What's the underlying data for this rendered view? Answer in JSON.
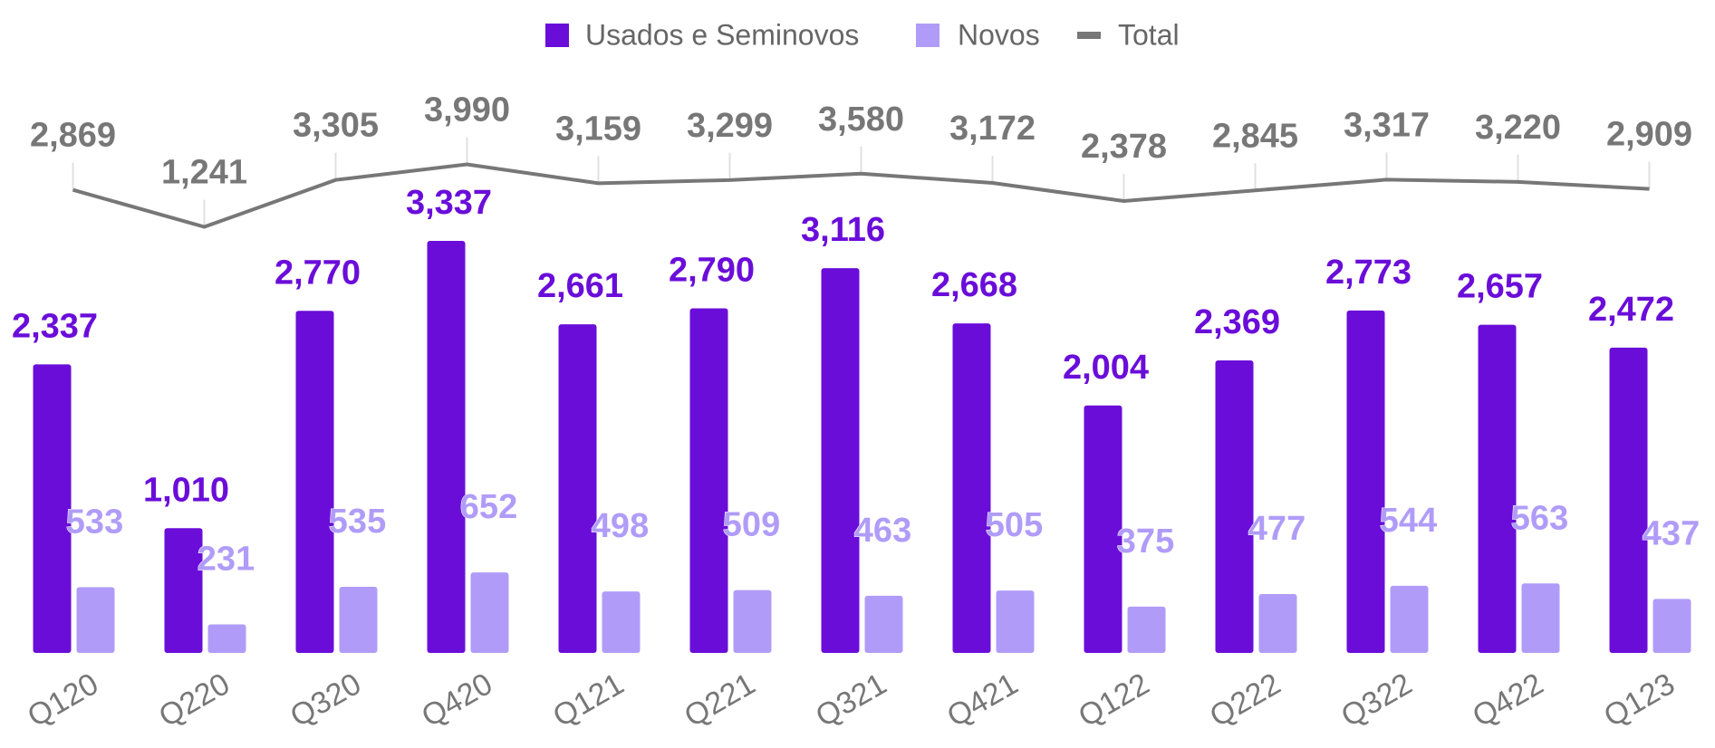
{
  "chart_data": {
    "type": "bar_line",
    "categories": [
      "Q120",
      "Q220",
      "Q320",
      "Q420",
      "Q121",
      "Q221",
      "Q321",
      "Q421",
      "Q122",
      "Q222",
      "Q322",
      "Q422",
      "Q123"
    ],
    "ylim": [
      0,
      4400
    ],
    "y2lim": [
      -17500,
      6400
    ],
    "legend": "top",
    "series": [
      {
        "name": "Usados e Seminovos",
        "color": "#6a0dd9",
        "type": "bar",
        "values": [
          2337,
          1010,
          2770,
          3337,
          2661,
          2790,
          3116,
          2668,
          2004,
          2369,
          2773,
          2657,
          2472
        ],
        "value_labels": [
          "2,337",
          "1,010",
          "2,770",
          "3,337",
          "2,661",
          "2,790",
          "3,116",
          "2,668",
          "2,004",
          "2,369",
          "2,773",
          "2,657",
          "2,472"
        ]
      },
      {
        "name": "Novos",
        "color": "#b09cf8",
        "type": "bar",
        "values": [
          533,
          231,
          535,
          652,
          498,
          509,
          463,
          505,
          375,
          477,
          544,
          563,
          437
        ]
      },
      {
        "name": "Total",
        "color": "#777777",
        "type": "line",
        "axis": "y2",
        "values": [
          2869,
          1241,
          3305,
          3990,
          3159,
          3299,
          3580,
          3172,
          2378,
          2845,
          3317,
          3220,
          2909
        ],
        "value_labels": [
          "2,869",
          "1,241",
          "3,305",
          "3,990",
          "3,159",
          "3,299",
          "3,580",
          "3,172",
          "2,378",
          "2,845",
          "3,317",
          "3,220",
          "2,909"
        ]
      }
    ]
  }
}
